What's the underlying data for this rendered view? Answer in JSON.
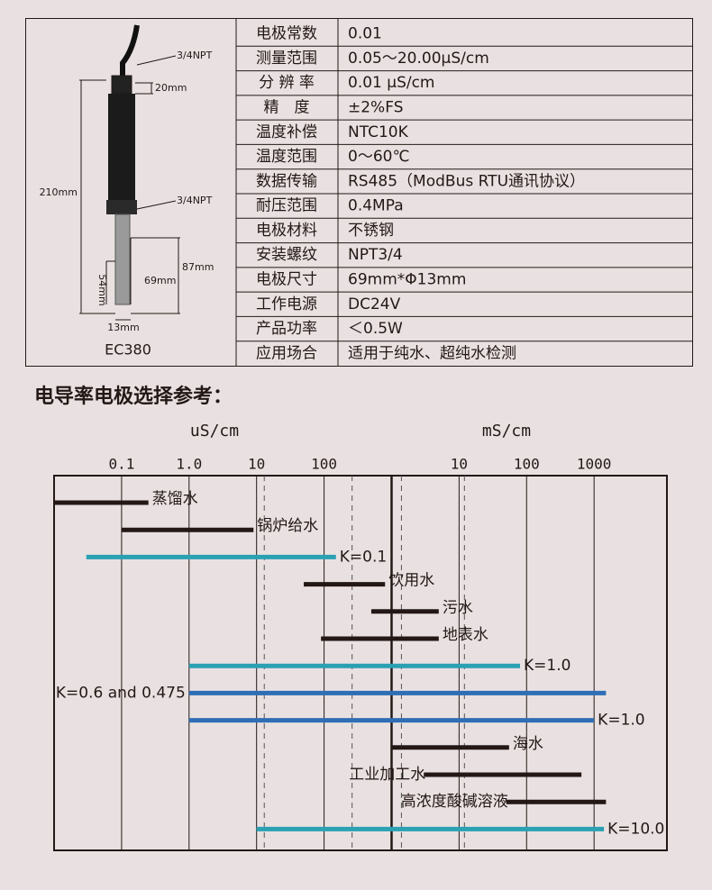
{
  "probe": {
    "model": "EC380",
    "dims": [
      "3/4NPT",
      "20mm",
      "210mm",
      "3/4NPT",
      "87mm",
      "54mm",
      "69mm",
      "13mm"
    ]
  },
  "spec": {
    "rows": [
      [
        "电极常数",
        "0.01"
      ],
      [
        "测量范围",
        "0.05～20.00μS/cm"
      ],
      [
        "分 辨 率",
        "0.01 μS/cm"
      ],
      [
        "精　度",
        "±2%FS"
      ],
      [
        "温度补偿",
        "NTC10K"
      ],
      [
        "温度范围",
        "0～60℃"
      ],
      [
        "数据传输",
        "RS485（ModBus RTU通讯协议）"
      ],
      [
        "耐压范围",
        "0.4MPa"
      ],
      [
        "电极材料",
        "不锈钢"
      ],
      [
        "安装螺纹",
        "NPT3/4"
      ],
      [
        "电极尺寸",
        "69mm*Φ13mm"
      ],
      [
        "工作电源",
        "DC24V"
      ],
      [
        "产品功率",
        "＜0.5W"
      ],
      [
        "应用场合",
        "适用于纯水、超纯水检测"
      ]
    ]
  },
  "chart_data": {
    "type": "range",
    "title": "电导率电极选择参考：",
    "x_unit_labels": [
      "uS/cm",
      "mS/cm"
    ],
    "log_scale": true,
    "xlim": [
      0.01,
      12000000
    ],
    "xticks": [
      0.1,
      {
        "value": 1,
        "label": "1.0"
      },
      10,
      100,
      {
        "value": 10000,
        "label": "10"
      },
      {
        "value": 100000,
        "label": "100"
      },
      {
        "value": 1000000,
        "label": "1000"
      }
    ],
    "dashed_lines": [
      13,
      260,
      1400,
      12000
    ],
    "divider": 1000,
    "series": [
      {
        "name": "蒸馏水",
        "color": "#231815",
        "low": 0.01,
        "high": 0.25
      },
      {
        "name": "锅炉给水",
        "color": "#231815",
        "low": 0.1,
        "high": 9
      },
      {
        "name": "K=0.1",
        "color": "#2aa0b3",
        "low": 0.03,
        "high": 150
      },
      {
        "name": "饮用水",
        "color": "#231815",
        "low": 50,
        "high": 800
      },
      {
        "name": "污水",
        "color": "#231815",
        "low": 500,
        "high": 5000
      },
      {
        "name": "地表水",
        "color": "#231815",
        "low": 90,
        "high": 5000
      },
      {
        "name": "K=1.0",
        "color": "#2aa0b3",
        "low": 1,
        "high": 80000
      },
      {
        "name": "K=0.6 and 0.475",
        "color": "#2f6eb5",
        "low": 1,
        "high": 1500000,
        "label_side": "left"
      },
      {
        "name": "K=1.0",
        "color": "#2f6eb5",
        "low": 1,
        "high": 1000000
      },
      {
        "name": "海水",
        "color": "#231815",
        "low": 1000,
        "high": 55000
      },
      {
        "name": "工业加工水",
        "color": "#231815",
        "low": 3000,
        "high": 650000,
        "label_side": "left"
      },
      {
        "name": "高浓度酸碱溶液",
        "color": "#231815",
        "low": 50000,
        "high": 1500000,
        "label_side": "left"
      },
      {
        "name": "K=10.0",
        "color": "#2aa0b3",
        "low": 10,
        "high": 1400000
      }
    ]
  }
}
